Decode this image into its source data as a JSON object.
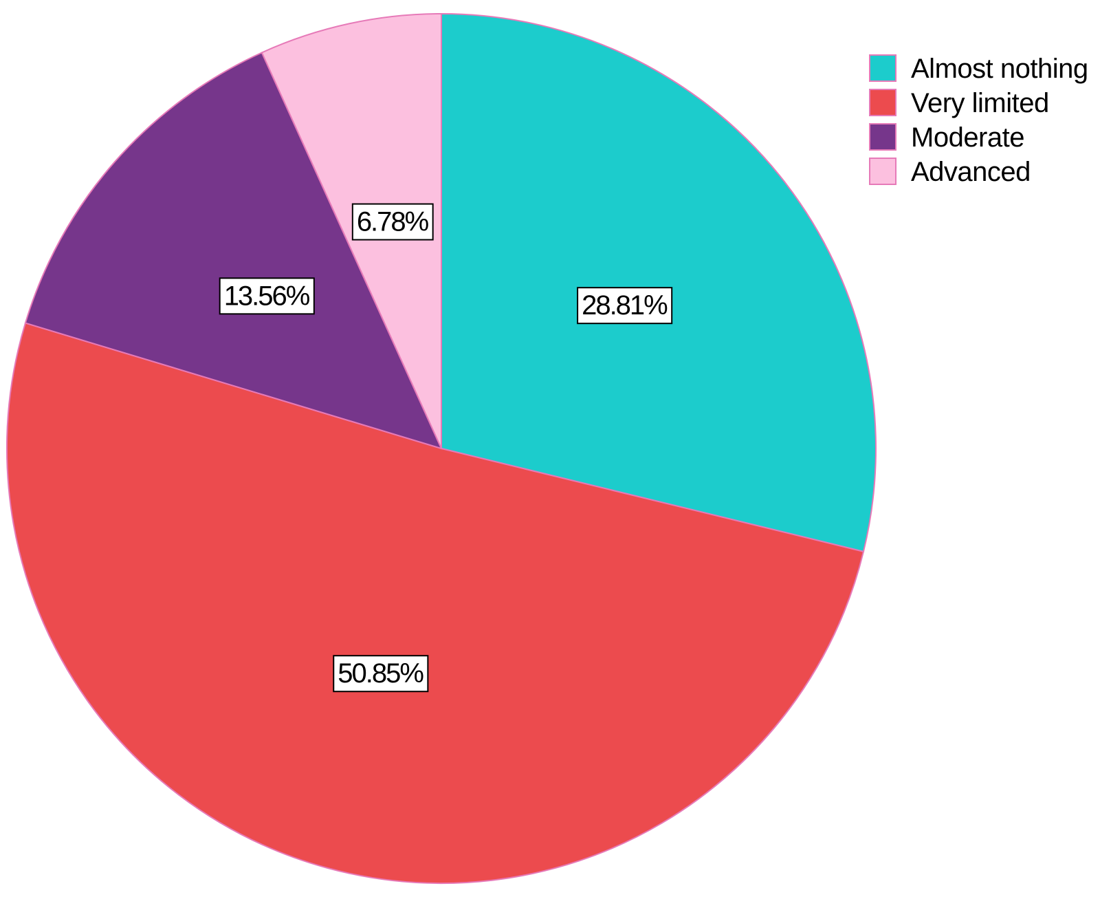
{
  "chart_data": {
    "type": "pie",
    "title": "",
    "start_angle": "12 o'clock",
    "direction": "clockwise",
    "legend_position": "top-right",
    "slices": [
      {
        "name": "Almost nothing",
        "value": 28.81,
        "label": "28.81%",
        "color": "#1ccccc"
      },
      {
        "name": "Very limited",
        "value": 50.85,
        "label": "50.85%",
        "color": "#ec4b4e"
      },
      {
        "name": "Moderate",
        "value": 13.56,
        "label": "13.56%",
        "color": "#76368b"
      },
      {
        "name": "Advanced",
        "value": 6.78,
        "label": "6.78%",
        "color": "#fcc0df"
      }
    ],
    "slice_border_color": "#e67ab8"
  }
}
